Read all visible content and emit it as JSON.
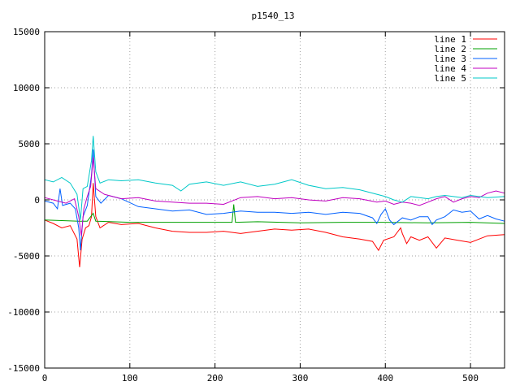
{
  "chart_data": {
    "type": "line",
    "title": "p1540_13",
    "xlabel": "",
    "ylabel": "",
    "xlim": [
      0,
      540
    ],
    "ylim": [
      -15000,
      15000
    ],
    "xticks": [
      0,
      100,
      200,
      300,
      400,
      500
    ],
    "yticks": [
      -15000,
      -10000,
      -5000,
      0,
      5000,
      10000,
      15000
    ],
    "grid": true,
    "legend_position": "top-right",
    "series": [
      {
        "name": "line 1",
        "color": "#ff0000",
        "points": [
          [
            0,
            -1800
          ],
          [
            10,
            -2100
          ],
          [
            20,
            -2500
          ],
          [
            30,
            -2300
          ],
          [
            38,
            -3500
          ],
          [
            41,
            -6000
          ],
          [
            44,
            -3500
          ],
          [
            48,
            -2500
          ],
          [
            52,
            -2300
          ],
          [
            55,
            -1500
          ],
          [
            57,
            1500
          ],
          [
            60,
            -1500
          ],
          [
            65,
            -2500
          ],
          [
            75,
            -2000
          ],
          [
            90,
            -2200
          ],
          [
            110,
            -2100
          ],
          [
            130,
            -2500
          ],
          [
            150,
            -2800
          ],
          [
            170,
            -2900
          ],
          [
            190,
            -2900
          ],
          [
            210,
            -2800
          ],
          [
            230,
            -3000
          ],
          [
            250,
            -2800
          ],
          [
            270,
            -2600
          ],
          [
            290,
            -2700
          ],
          [
            310,
            -2600
          ],
          [
            330,
            -2900
          ],
          [
            350,
            -3300
          ],
          [
            370,
            -3500
          ],
          [
            385,
            -3700
          ],
          [
            392,
            -4500
          ],
          [
            398,
            -3600
          ],
          [
            410,
            -3300
          ],
          [
            418,
            -2500
          ],
          [
            420,
            -3000
          ],
          [
            425,
            -3900
          ],
          [
            430,
            -3300
          ],
          [
            440,
            -3600
          ],
          [
            450,
            -3300
          ],
          [
            460,
            -4300
          ],
          [
            470,
            -3400
          ],
          [
            485,
            -3600
          ],
          [
            500,
            -3800
          ],
          [
            520,
            -3200
          ],
          [
            540,
            -3100
          ]
        ]
      },
      {
        "name": "line 2",
        "color": "#00a000",
        "points": [
          [
            0,
            -1800
          ],
          [
            40,
            -1900
          ],
          [
            50,
            -1900
          ],
          [
            57,
            -1200
          ],
          [
            60,
            -1900
          ],
          [
            100,
            -2000
          ],
          [
            150,
            -2000
          ],
          [
            200,
            -2000
          ],
          [
            220,
            -2000
          ],
          [
            222,
            -400
          ],
          [
            224,
            -2000
          ],
          [
            250,
            -1950
          ],
          [
            300,
            -2050
          ],
          [
            350,
            -2000
          ],
          [
            400,
            -2000
          ],
          [
            450,
            -2050
          ],
          [
            500,
            -2000
          ],
          [
            540,
            -2100
          ]
        ]
      },
      {
        "name": "line 3",
        "color": "#0060ff",
        "points": [
          [
            0,
            -100
          ],
          [
            10,
            -300
          ],
          [
            15,
            -800
          ],
          [
            18,
            1000
          ],
          [
            21,
            -500
          ],
          [
            30,
            -300
          ],
          [
            36,
            -800
          ],
          [
            40,
            -2500
          ],
          [
            42,
            -4500
          ],
          [
            45,
            -1500
          ],
          [
            50,
            -500
          ],
          [
            55,
            2200
          ],
          [
            57,
            4500
          ],
          [
            60,
            300
          ],
          [
            66,
            -300
          ],
          [
            75,
            400
          ],
          [
            90,
            100
          ],
          [
            110,
            -600
          ],
          [
            130,
            -800
          ],
          [
            150,
            -1000
          ],
          [
            170,
            -900
          ],
          [
            190,
            -1300
          ],
          [
            210,
            -1200
          ],
          [
            230,
            -1000
          ],
          [
            250,
            -1100
          ],
          [
            270,
            -1100
          ],
          [
            290,
            -1200
          ],
          [
            310,
            -1100
          ],
          [
            330,
            -1300
          ],
          [
            350,
            -1100
          ],
          [
            370,
            -1200
          ],
          [
            385,
            -1600
          ],
          [
            390,
            -2100
          ],
          [
            395,
            -1300
          ],
          [
            400,
            -800
          ],
          [
            405,
            -1800
          ],
          [
            410,
            -2200
          ],
          [
            420,
            -1600
          ],
          [
            430,
            -1800
          ],
          [
            440,
            -1500
          ],
          [
            450,
            -1500
          ],
          [
            455,
            -2200
          ],
          [
            460,
            -1800
          ],
          [
            470,
            -1500
          ],
          [
            480,
            -900
          ],
          [
            490,
            -1100
          ],
          [
            500,
            -1000
          ],
          [
            510,
            -1700
          ],
          [
            520,
            -1400
          ],
          [
            530,
            -1700
          ],
          [
            540,
            -1900
          ]
        ]
      },
      {
        "name": "line 4",
        "color": "#c000c0",
        "points": [
          [
            0,
            200
          ],
          [
            15,
            -100
          ],
          [
            25,
            -300
          ],
          [
            35,
            100
          ],
          [
            40,
            -1500
          ],
          [
            43,
            -3200
          ],
          [
            46,
            -800
          ],
          [
            50,
            300
          ],
          [
            54,
            1200
          ],
          [
            57,
            3800
          ],
          [
            60,
            1000
          ],
          [
            70,
            500
          ],
          [
            90,
            100
          ],
          [
            110,
            200
          ],
          [
            130,
            -100
          ],
          [
            150,
            -200
          ],
          [
            170,
            -300
          ],
          [
            190,
            -300
          ],
          [
            210,
            -400
          ],
          [
            230,
            200
          ],
          [
            250,
            300
          ],
          [
            270,
            100
          ],
          [
            290,
            200
          ],
          [
            310,
            0
          ],
          [
            330,
            -100
          ],
          [
            350,
            200
          ],
          [
            370,
            100
          ],
          [
            390,
            -200
          ],
          [
            400,
            -100
          ],
          [
            410,
            -400
          ],
          [
            420,
            -200
          ],
          [
            430,
            -300
          ],
          [
            440,
            -500
          ],
          [
            450,
            -200
          ],
          [
            460,
            100
          ],
          [
            470,
            300
          ],
          [
            480,
            -200
          ],
          [
            490,
            100
          ],
          [
            500,
            300
          ],
          [
            510,
            200
          ],
          [
            520,
            600
          ],
          [
            530,
            800
          ],
          [
            540,
            600
          ]
        ]
      },
      {
        "name": "line 5",
        "color": "#00c8c8",
        "points": [
          [
            0,
            1800
          ],
          [
            10,
            1600
          ],
          [
            20,
            2000
          ],
          [
            30,
            1500
          ],
          [
            38,
            500
          ],
          [
            42,
            -1800
          ],
          [
            45,
            1000
          ],
          [
            50,
            1200
          ],
          [
            55,
            3500
          ],
          [
            57,
            5700
          ],
          [
            60,
            2500
          ],
          [
            65,
            1500
          ],
          [
            75,
            1800
          ],
          [
            90,
            1700
          ],
          [
            110,
            1800
          ],
          [
            130,
            1500
          ],
          [
            150,
            1300
          ],
          [
            160,
            800
          ],
          [
            170,
            1400
          ],
          [
            190,
            1600
          ],
          [
            210,
            1300
          ],
          [
            230,
            1600
          ],
          [
            250,
            1200
          ],
          [
            270,
            1400
          ],
          [
            290,
            1800
          ],
          [
            310,
            1300
          ],
          [
            330,
            1000
          ],
          [
            350,
            1100
          ],
          [
            370,
            900
          ],
          [
            390,
            500
          ],
          [
            400,
            300
          ],
          [
            410,
            0
          ],
          [
            420,
            -200
          ],
          [
            430,
            300
          ],
          [
            440,
            200
          ],
          [
            450,
            100
          ],
          [
            460,
            300
          ],
          [
            470,
            400
          ],
          [
            480,
            300
          ],
          [
            490,
            200
          ],
          [
            500,
            400
          ],
          [
            520,
            200
          ],
          [
            540,
            300
          ]
        ]
      }
    ]
  }
}
